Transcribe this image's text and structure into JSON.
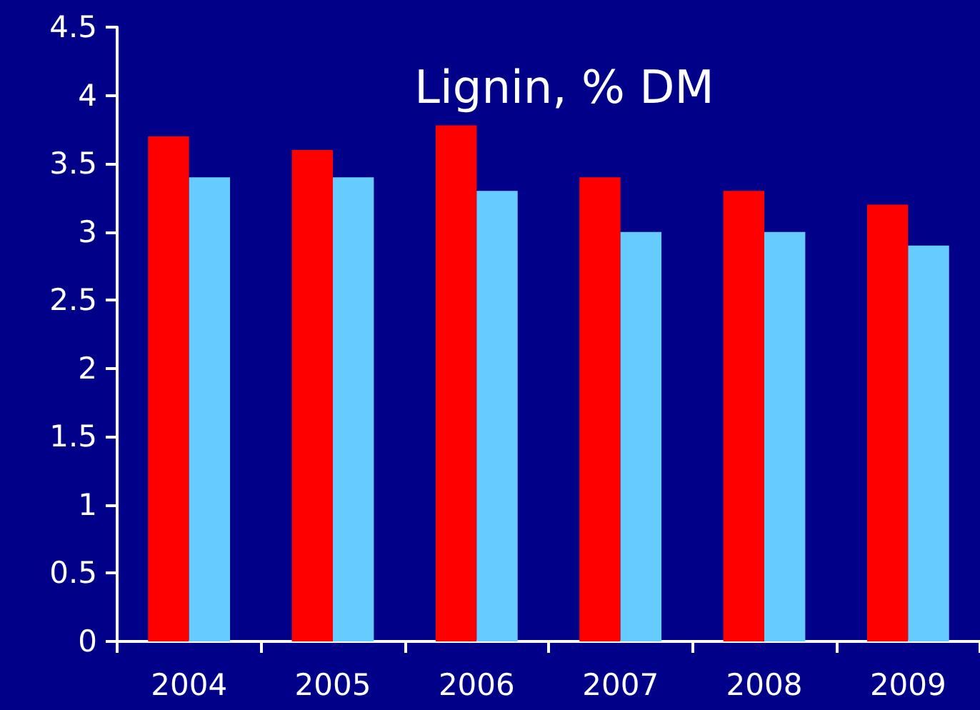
{
  "chart_data": {
    "type": "bar",
    "title": "Lignin, % DM",
    "categories": [
      "2004",
      "2005",
      "2006",
      "2007",
      "2008",
      "2009"
    ],
    "series": [
      {
        "color": "#ff0000",
        "values": [
          3.7,
          3.6,
          3.78,
          3.4,
          3.3,
          3.2
        ]
      },
      {
        "color": "#66ccff",
        "values": [
          3.4,
          3.4,
          3.3,
          3.0,
          3.0,
          2.9
        ]
      }
    ],
    "ylim": [
      0,
      4.5
    ],
    "yticks": [
      0,
      0.5,
      1,
      1.5,
      2,
      2.5,
      3,
      3.5,
      4,
      4.5
    ],
    "grid": false
  }
}
